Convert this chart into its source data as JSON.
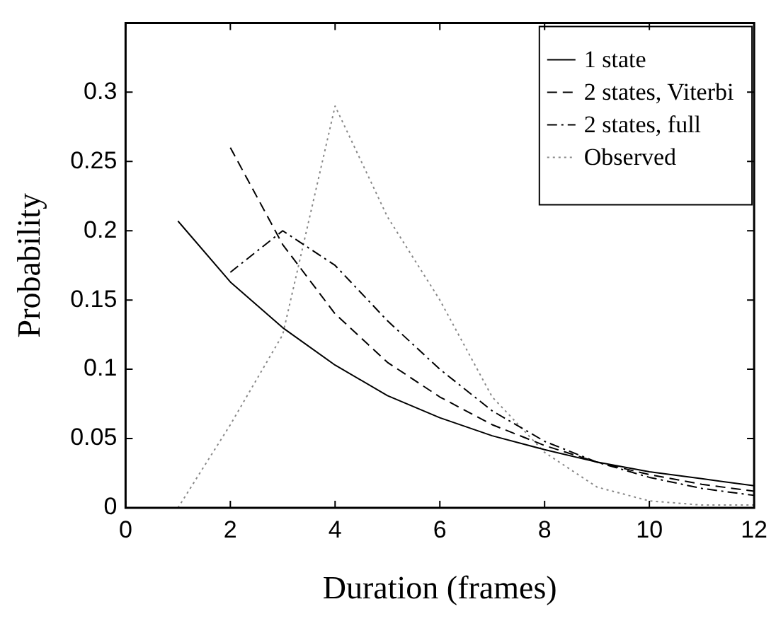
{
  "chart_data": {
    "type": "line",
    "xlabel": "Duration (frames)",
    "ylabel": "Probability",
    "xlim": [
      0,
      12
    ],
    "xticks": [
      0,
      2,
      4,
      6,
      8,
      10,
      12
    ],
    "ylim": [
      0,
      0.35
    ],
    "yticks": [
      0,
      0.05,
      0.1,
      0.15,
      0.2,
      0.25,
      0.3
    ],
    "grid": false,
    "legend": "top right",
    "marker": "none",
    "series": [
      {
        "name": "1 state",
        "color": "#000000",
        "line_style": "solid",
        "x": [
          1,
          2,
          3,
          4,
          5,
          6,
          7,
          8,
          9,
          10,
          11,
          12
        ],
        "values": [
          0.207,
          0.163,
          0.13,
          0.103,
          0.081,
          0.065,
          0.052,
          0.042,
          0.033,
          0.026,
          0.021,
          0.016
        ]
      },
      {
        "name": "2 states, Viterbi",
        "color": "#000000",
        "line_style": "dashed",
        "x": [
          2,
          3,
          4,
          5,
          6,
          7,
          8,
          9,
          10,
          11,
          12
        ],
        "values": [
          0.26,
          0.19,
          0.14,
          0.105,
          0.08,
          0.06,
          0.045,
          0.033,
          0.024,
          0.017,
          0.012
        ]
      },
      {
        "name": "2 states, full",
        "color": "#000000",
        "line_style": "dashdot",
        "x": [
          2,
          3,
          4,
          5,
          6,
          7,
          8,
          9,
          10,
          11,
          12
        ],
        "values": [
          0.17,
          0.2,
          0.175,
          0.135,
          0.1,
          0.07,
          0.048,
          0.033,
          0.022,
          0.014,
          0.009
        ]
      },
      {
        "name": "Observed",
        "color": "#888888",
        "line_style": "dotted",
        "x": [
          1,
          2,
          3,
          4,
          5,
          6,
          7,
          8,
          9,
          10,
          11,
          12
        ],
        "values": [
          0,
          0.06,
          0.125,
          0.29,
          0.21,
          0.15,
          0.08,
          0.04,
          0.015,
          0.005,
          0.002,
          0.002
        ]
      }
    ]
  }
}
